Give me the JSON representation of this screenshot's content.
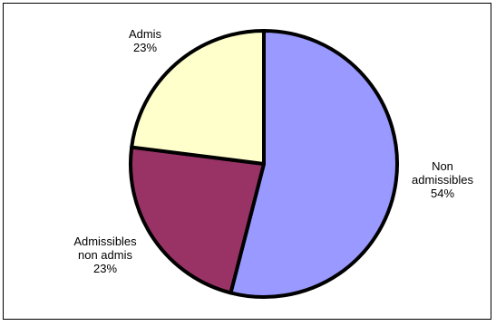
{
  "chart_data": {
    "type": "pie",
    "title": "",
    "slices": [
      {
        "name": "Non admissibles",
        "label_lines": [
          "Non",
          "admissibles"
        ],
        "percent_label": "54%",
        "value": 54,
        "color": "#9999ff"
      },
      {
        "name": "Admissibles non admis",
        "label_lines": [
          "Admissibles",
          "non admis"
        ],
        "percent_label": "23%",
        "value": 23,
        "color": "#993366"
      },
      {
        "name": "Admis",
        "label_lines": [
          "Admis"
        ],
        "percent_label": "23%",
        "value": 23,
        "color": "#ffffcc"
      }
    ],
    "legend": "none",
    "start_angle_deg": 0,
    "direction": "clockwise"
  }
}
